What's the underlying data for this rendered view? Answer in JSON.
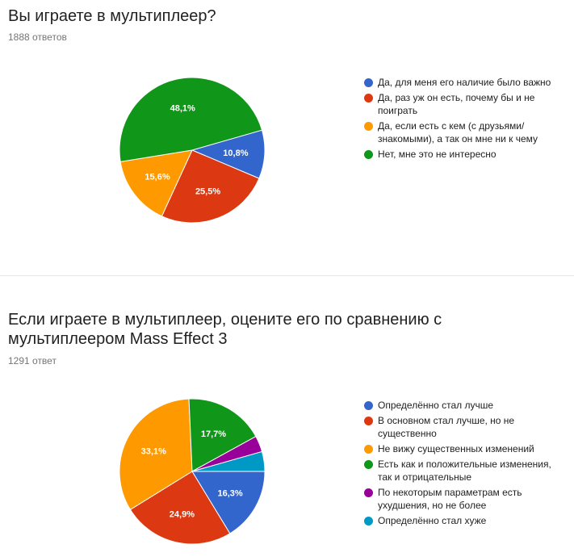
{
  "colors": {
    "blue": "#3366cc",
    "red": "#dc3912",
    "orange": "#ff9900",
    "green": "#109618",
    "purple": "#990099",
    "teal": "#0099c6"
  },
  "questions": [
    {
      "title": "Вы играете в мультиплеер?",
      "responses": "1888 ответов"
    },
    {
      "title": "Если играете в мультиплеер, оцените его по сравнению с мультиплеером Mass Effect 3",
      "responses": "1291 ответ"
    }
  ],
  "chart_data": [
    {
      "type": "pie",
      "title": "Вы играете в мультиплеер?",
      "legend_position": "right",
      "slices": [
        {
          "label": "Да, для меня его наличие было важно",
          "value": 10.8,
          "display": "10,8%",
          "color": "#3366cc"
        },
        {
          "label": "Да, раз уж он есть, почему бы и не поиграть",
          "value": 25.5,
          "display": "25,5%",
          "color": "#dc3912"
        },
        {
          "label": "Да, если есть с кем (с друзьями/знакомыми), а так он мне ни к чему",
          "value": 15.6,
          "display": "15,6%",
          "color": "#ff9900"
        },
        {
          "label": "Нет, мне это не интересно",
          "value": 48.1,
          "display": "48,1%",
          "color": "#109618"
        }
      ]
    },
    {
      "type": "pie",
      "title": "Если играете в мультиплеер, оцените его по сравнению с мультиплеером Mass Effect 3",
      "legend_position": "right",
      "slices": [
        {
          "label": "Определённо стал лучше",
          "value": 16.3,
          "display": "16,3%",
          "color": "#3366cc"
        },
        {
          "label": "В основном стал лучше, но не существенно",
          "value": 24.9,
          "display": "24,9%",
          "color": "#dc3912"
        },
        {
          "label": "Не вижу существенных изменений",
          "value": 33.1,
          "display": "33,1%",
          "color": "#ff9900"
        },
        {
          "label": "Есть как и положительные изменения, так и отрицательные",
          "value": 17.7,
          "display": "17,7%",
          "color": "#109618"
        },
        {
          "label": "По некоторым параметрам есть ухудшения, но не более",
          "value": 3.6,
          "display": "",
          "color": "#990099"
        },
        {
          "label": "Определённо стал хуже",
          "value": 4.4,
          "display": "",
          "color": "#0099c6"
        }
      ]
    }
  ]
}
